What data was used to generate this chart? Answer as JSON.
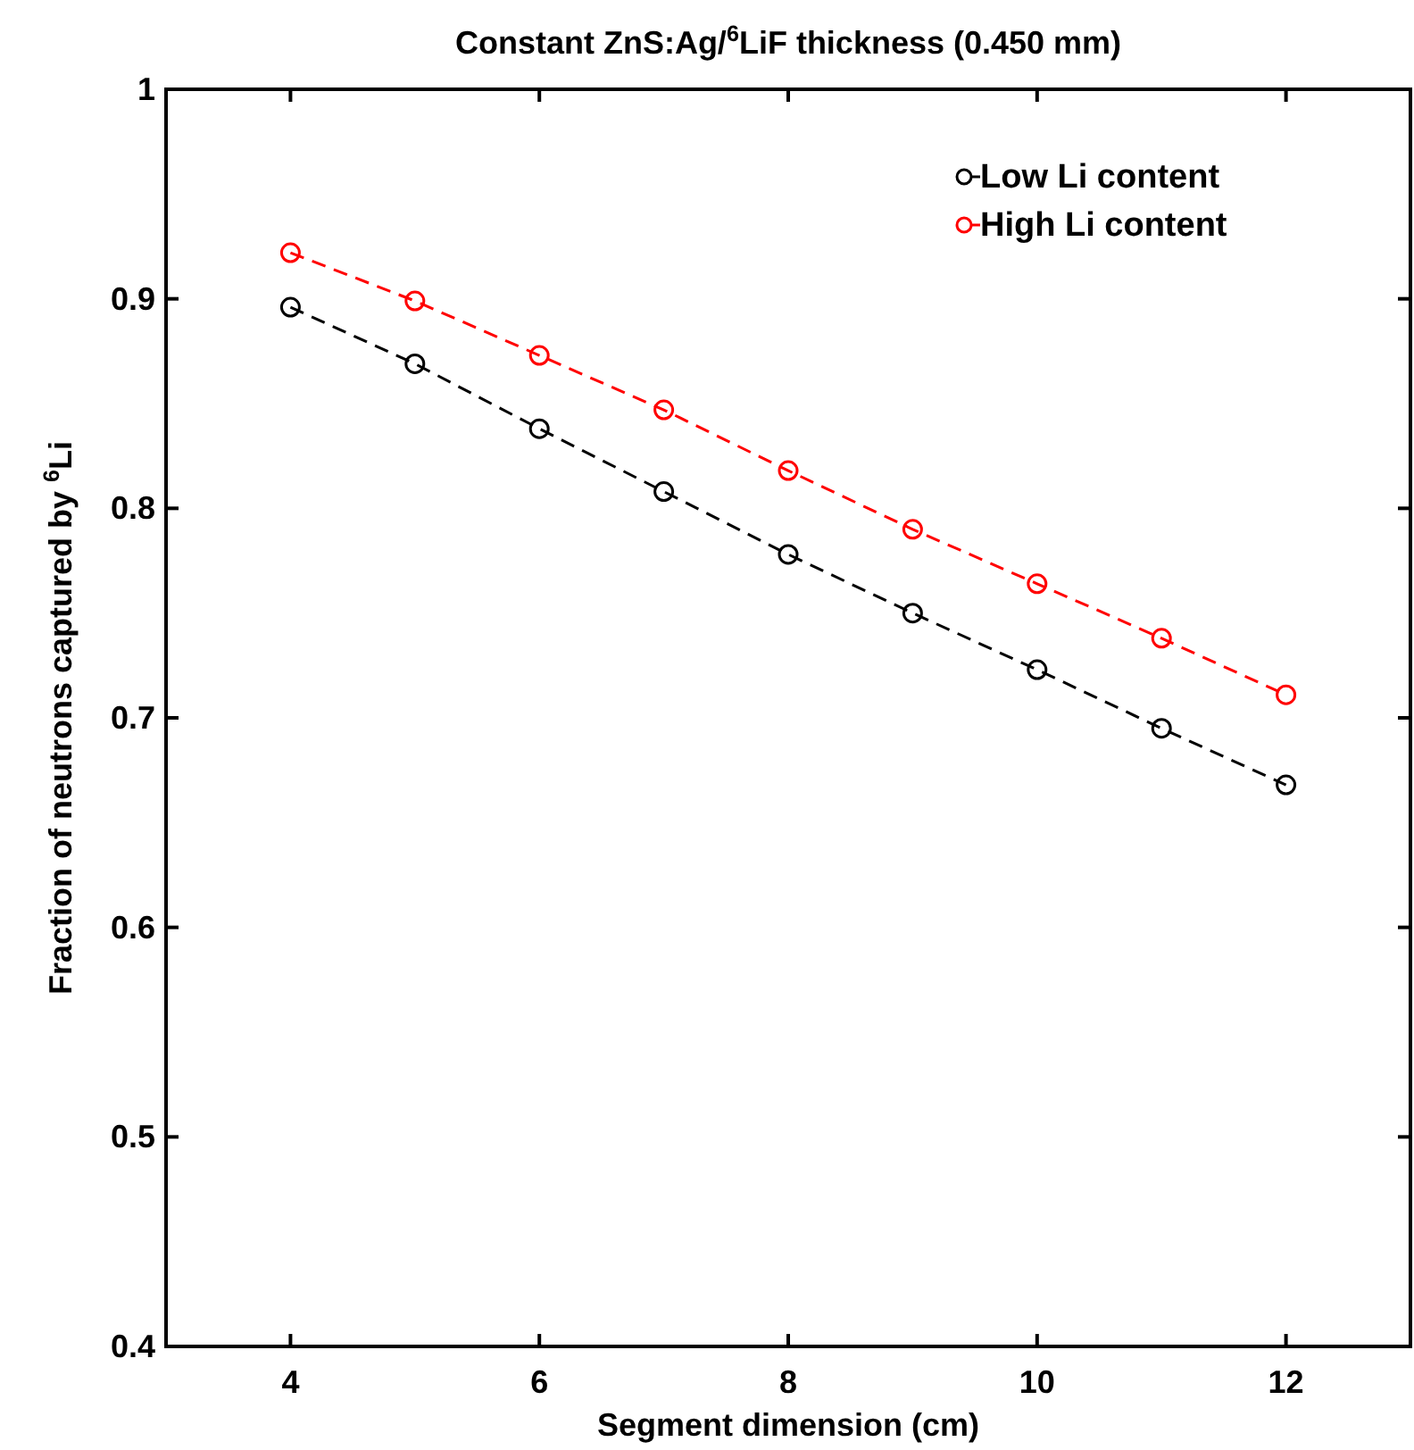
{
  "chart_data": {
    "type": "line",
    "title": "Constant ZnS:Ag/$^{6}$LiF thickness (0.450 mm)",
    "xlabel": "Segment dimension (cm)",
    "ylabel": "Fraction of neutrons captured by $^{6}$Li",
    "x": [
      4,
      5,
      6,
      7,
      8,
      9,
      10,
      11,
      12
    ],
    "series": [
      {
        "name": "Low Li content",
        "color": "#000000",
        "values": [
          0.896,
          0.869,
          0.838,
          0.808,
          0.778,
          0.75,
          0.723,
          0.695,
          0.668
        ]
      },
      {
        "name": "High Li content",
        "color": "#ff0000",
        "values": [
          0.922,
          0.899,
          0.873,
          0.847,
          0.818,
          0.79,
          0.764,
          0.738,
          0.711
        ]
      }
    ],
    "xlim": [
      3,
      13
    ],
    "xticks": [
      4,
      6,
      8,
      10,
      12
    ],
    "ylim": [
      0.4,
      1
    ],
    "yticks": [
      0.4,
      0.5,
      0.6,
      0.7,
      0.8,
      0.9,
      1
    ],
    "grid": false,
    "legend": "top right",
    "marker": "circle",
    "line_style": "dashed"
  }
}
